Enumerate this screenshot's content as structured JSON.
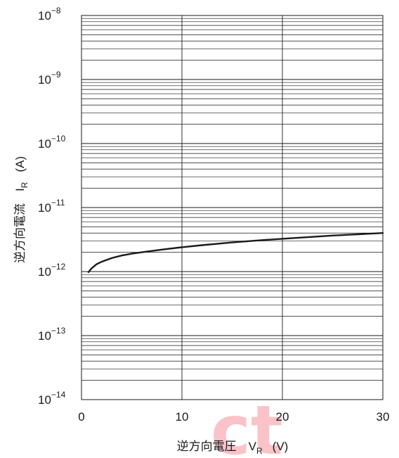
{
  "chart_data": {
    "type": "line",
    "xlabel": {
      "main": "逆方向電圧　V",
      "sub": "R",
      "unit": "(V)"
    },
    "ylabel": {
      "main": "逆方向電流　I",
      "sub": "R",
      "unit": "(A)"
    },
    "xlim": [
      0,
      30
    ],
    "ylim": [
      1e-14,
      1e-08
    ],
    "y_scale": "log",
    "x_ticks": [
      {
        "value": 0,
        "label": "0"
      },
      {
        "value": 10,
        "label": "10"
      },
      {
        "value": 20,
        "label": "20"
      },
      {
        "value": 30,
        "label": "30"
      }
    ],
    "y_ticks": [
      {
        "exp": -14,
        "base": "10",
        "power": "−14"
      },
      {
        "exp": -13,
        "base": "10",
        "power": "−13"
      },
      {
        "exp": -12,
        "base": "10",
        "power": "−12"
      },
      {
        "exp": -11,
        "base": "10",
        "power": "−11"
      },
      {
        "exp": -10,
        "base": "10",
        "power": "−10"
      },
      {
        "exp": -9,
        "base": "10",
        "power": "−9"
      },
      {
        "exp": -8,
        "base": "10",
        "power": "−8"
      }
    ],
    "grid": true,
    "series": [
      {
        "color": "#1a1a1a",
        "x": [
          0.7,
          1,
          1.5,
          2,
          3,
          4,
          5,
          6,
          8,
          10,
          12,
          15,
          18,
          20,
          22,
          25,
          28,
          30
        ],
        "y": [
          9.8e-13,
          1.12e-12,
          1.3e-12,
          1.42e-12,
          1.62e-12,
          1.78e-12,
          1.9e-12,
          2e-12,
          2.2e-12,
          2.4e-12,
          2.58e-12,
          2.85e-12,
          3.1e-12,
          3.25e-12,
          3.4e-12,
          3.65e-12,
          3.85e-12,
          4e-12
        ]
      }
    ]
  },
  "watermark": {
    "text": "ct",
    "color": "#e8142c"
  }
}
